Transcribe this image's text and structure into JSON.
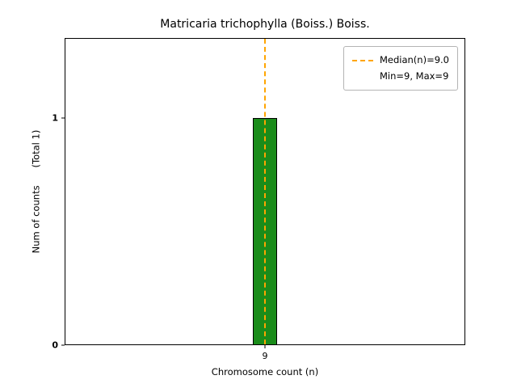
{
  "figure": {
    "background": "#ffffff"
  },
  "chart_data": {
    "type": "bar",
    "title": "Matricaria trichophylla (Boiss.) Boiss.",
    "xlabel": "Chromosome count (n)",
    "ylabel": "Num of counts      (Total 1)",
    "categories": [
      "9"
    ],
    "values": [
      1
    ],
    "ylim": [
      0,
      1.35
    ],
    "yticks": [
      0,
      1
    ],
    "ytick_labels": [
      "0",
      "1"
    ],
    "bar_color": "#1a8c1a",
    "bar_edge_color": "#000000",
    "median_line": {
      "x": 9,
      "color": "#ffa500",
      "style": "dashed",
      "label": "Median(n)=9.0"
    },
    "legend": {
      "position": "upper right",
      "entries": [
        "Median(n)=9.0",
        "Min=9, Max=9"
      ]
    },
    "grid": false
  }
}
